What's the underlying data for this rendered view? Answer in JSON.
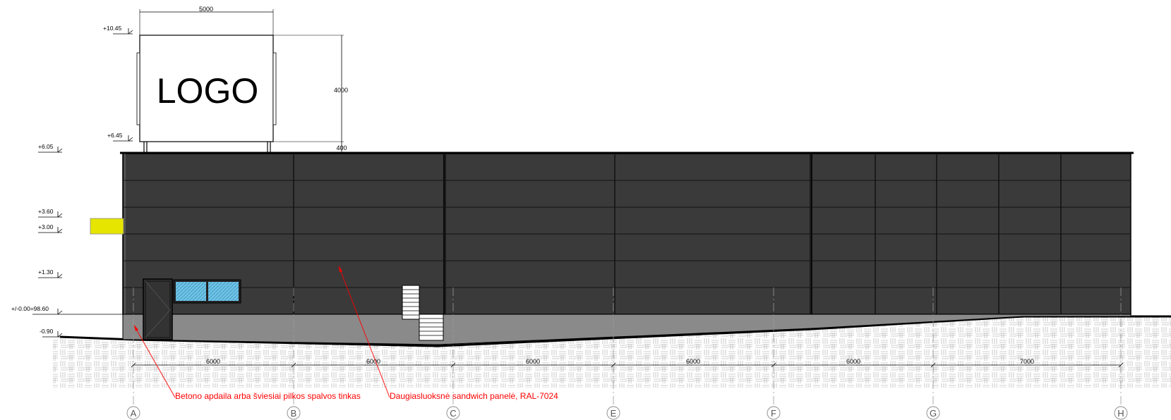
{
  "sign": {
    "logo_text": "LOGO",
    "width_dim": "5000",
    "height_dim": "4000",
    "post_dim": "400"
  },
  "levels": [
    "+10.45",
    "+6.45",
    "+6.05",
    "+3.60",
    "+3.00",
    "+1.30",
    "+/-0.00=98.60",
    "-0.90"
  ],
  "axes": [
    "A",
    "B",
    "C",
    "E",
    "F",
    "G",
    "H"
  ],
  "spans": [
    "6000",
    "6000",
    "6000",
    "6000",
    "6000",
    "7000"
  ],
  "annotations": {
    "concrete_finish": "Betono apdaila arba šviesiai pilkos spalvos tinkas",
    "sandwich_panel": "Daugiasluoksnė sandwich panelė, RAL-7024"
  },
  "colors": {
    "panel": "#3a3a3a",
    "plinth": "#8a8a8a",
    "glazing": "#6fc3e6",
    "signage_yellow": "#e5e500",
    "annotation": "#ff0000"
  }
}
